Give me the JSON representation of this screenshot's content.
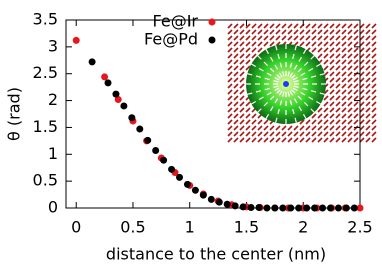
{
  "chart_data": {
    "type": "scatter",
    "xlabel": "distance to the center (nm)",
    "ylabel": "θ (rad)",
    "xlim": [
      -0.09,
      2.5
    ],
    "xticks": [
      0,
      0.5,
      1,
      1.5,
      2,
      2.5
    ],
    "ylim": [
      0,
      3.5
    ],
    "yticks": [
      0,
      0.5,
      1,
      1.5,
      2,
      2.5,
      3,
      3.5
    ],
    "legend": "top",
    "series": [
      {
        "name": "Fe@Ir",
        "color": "#e8161b",
        "x": [
          0,
          0.25,
          0.37,
          0.5,
          0.62,
          0.75,
          0.87,
          1.0,
          1.12,
          1.25,
          1.37,
          1.5,
          1.62,
          1.75,
          1.87,
          2.0,
          2.12,
          2.25,
          2.37,
          2.5
        ],
        "values": [
          3.12,
          2.44,
          2.02,
          1.62,
          1.25,
          0.93,
          0.66,
          0.42,
          0.26,
          0.13,
          0.06,
          0.02,
          0.01,
          0,
          0,
          0,
          0,
          0,
          0,
          0
        ]
      },
      {
        "name": "Fe@Pd",
        "color": "#000000",
        "x": [
          0.14,
          0.28,
          0.35,
          0.42,
          0.49,
          0.56,
          0.63,
          0.7,
          0.77,
          0.84,
          0.91,
          0.98,
          1.05,
          1.12,
          1.19,
          1.26,
          1.33,
          1.4,
          1.47,
          1.54,
          1.61,
          1.68,
          1.75,
          1.82,
          1.89,
          1.96,
          2.03,
          2.1,
          2.17,
          2.24,
          2.31,
          2.38,
          2.45
        ],
        "values": [
          2.72,
          2.33,
          2.12,
          1.9,
          1.68,
          1.47,
          1.26,
          1.07,
          0.89,
          0.72,
          0.57,
          0.44,
          0.33,
          0.24,
          0.16,
          0.11,
          0.07,
          0.04,
          0.02,
          0.01,
          0.01,
          0,
          0,
          0,
          0,
          0,
          0,
          0,
          0,
          0,
          0,
          0,
          0
        ]
      }
    ]
  }
}
